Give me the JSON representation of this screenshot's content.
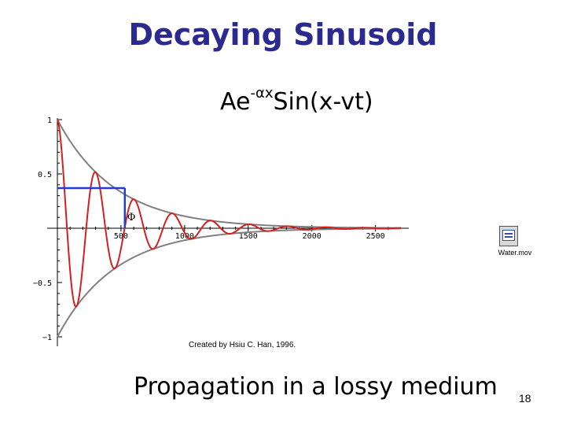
{
  "title": "Decaying Sinusoid",
  "formula": {
    "prefix": "Ae",
    "exponent": "-αx",
    "rest": "Sin(x-vt)"
  },
  "credit": "Created by Hsiu C. Han, 1996.",
  "caption": "Propagation in a lossy medium",
  "page_number": "18",
  "movie": {
    "icon": "movie-file-icon",
    "label": "Water.mov"
  },
  "phase_label": "Φ",
  "colors": {
    "title": "#2b2b8f",
    "wave": "#d42020",
    "envelope": "#808080",
    "phase_marker": "#1f3fd0"
  },
  "chart_data": {
    "type": "line",
    "title": "",
    "xlabel": "",
    "ylabel": "",
    "xlim": [
      0,
      2700
    ],
    "ylim": [
      -1,
      1
    ],
    "xticks": [
      500,
      1000,
      1500,
      2000,
      2500
    ],
    "xtick_labels": [
      "500",
      "1000",
      "1500",
      "2000",
      "2500"
    ],
    "yticks": [
      1,
      0.5,
      -0.5,
      -1
    ],
    "ytick_labels": [
      "1",
      "0.5",
      "−0.5",
      "−1"
    ],
    "grid": false,
    "legend": "none",
    "series": [
      {
        "role": "upper-envelope",
        "function": "exp(-alpha*x)",
        "alpha": 0.0022
      },
      {
        "role": "lower-envelope",
        "function": "-exp(-alpha*x)",
        "alpha": 0.0022
      },
      {
        "role": "decaying-sinusoid",
        "function": "exp(-alpha*x)*cos(2*pi*x/wavelength)",
        "alpha": 0.0022,
        "wavelength": 302
      }
    ],
    "annotations": [
      {
        "type": "phase-marker",
        "x": 530,
        "y": 0.37,
        "label": "Φ"
      }
    ]
  }
}
